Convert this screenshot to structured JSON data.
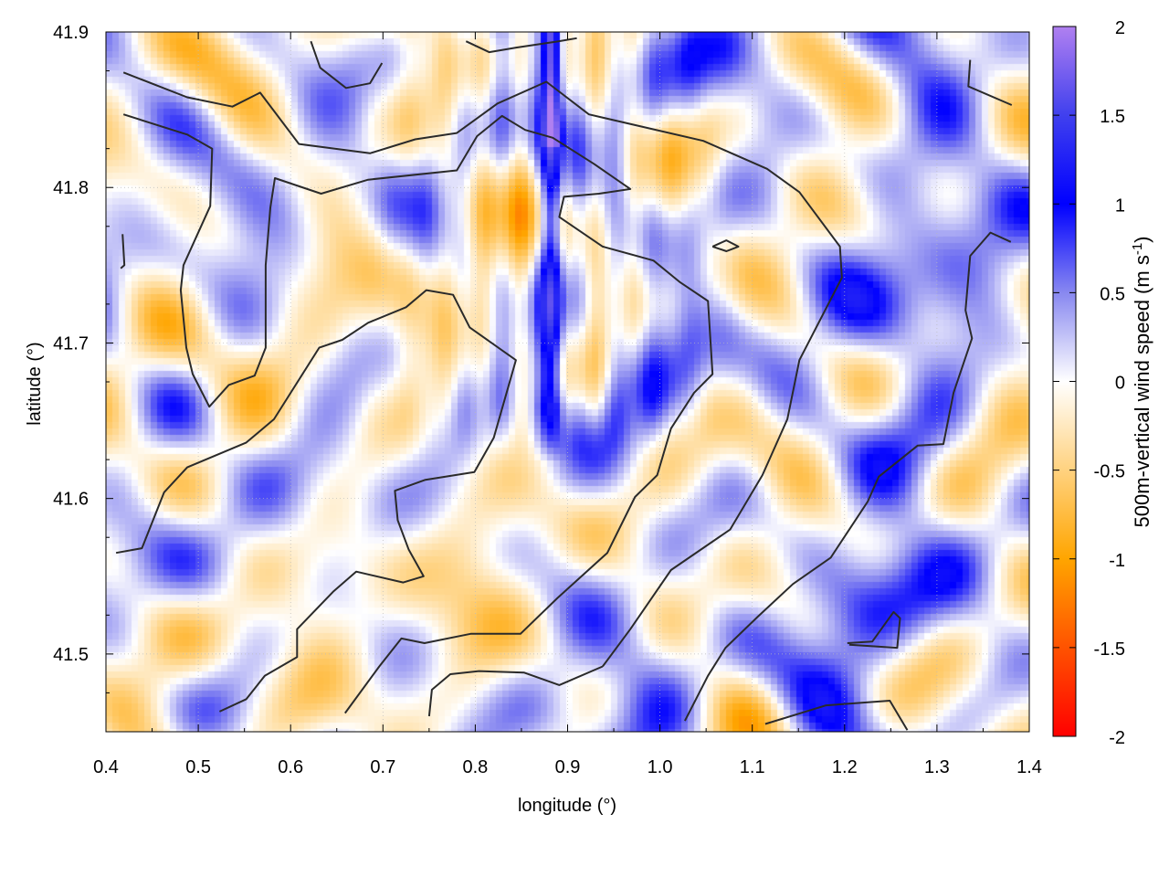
{
  "chart_data": {
    "type": "heatmap",
    "xlabel": "longitude (°)",
    "ylabel": "latitude (°)",
    "colorbar_label": "500m-vertical wind speed (m s",
    "colorbar_label_sup": "-1",
    "colorbar_label_end": ")",
    "xlim": [
      0.4,
      1.4
    ],
    "ylim": [
      41.45,
      41.9
    ],
    "clim": [
      -2,
      2
    ],
    "xticks": [
      "0.4",
      "0.5",
      "0.6",
      "0.7",
      "0.8",
      "0.9",
      "1.0",
      "1.1",
      "1.2",
      "1.3",
      "1.4"
    ],
    "yticks": [
      "41.5",
      "41.6",
      "41.7",
      "41.8",
      "41.9"
    ],
    "cticks": [
      "2",
      "1.5",
      "1",
      "0.5",
      "0",
      "-0.5",
      "-1",
      "-1.5",
      "-2"
    ],
    "grid": true,
    "colormap": [
      {
        "v": -2,
        "color": "#ff0000"
      },
      {
        "v": -1,
        "color": "#ffa500"
      },
      {
        "v": 0,
        "color": "#ffffff"
      },
      {
        "v": 0.5,
        "color": "#8888f0"
      },
      {
        "v": 1,
        "color": "#0000ff"
      },
      {
        "v": 1.5,
        "color": "#4040ee"
      },
      {
        "v": 2,
        "color": "#b080f0"
      }
    ],
    "field_features": [
      {
        "kind": "updraft-jet",
        "lon": 0.88,
        "lat_from": 41.66,
        "lat_to": 41.9,
        "peak": 1.9
      }
    ],
    "contours": [
      [
        [
          0.419,
          41.874
        ],
        [
          0.488,
          41.858
        ],
        [
          0.537,
          41.852
        ],
        [
          0.567,
          41.861
        ],
        [
          0.609,
          41.828
        ],
        [
          0.686,
          41.822
        ],
        [
          0.735,
          41.831
        ],
        [
          0.78,
          41.835
        ],
        [
          0.824,
          41.854
        ],
        [
          0.877,
          41.868
        ],
        [
          0.923,
          41.847
        ],
        [
          1.047,
          41.83
        ],
        [
          1.116,
          41.812
        ],
        [
          1.151,
          41.797
        ],
        [
          1.195,
          41.762
        ],
        [
          1.197,
          41.742
        ],
        [
          1.151,
          41.689
        ],
        [
          1.138,
          41.651
        ],
        [
          1.111,
          41.615
        ],
        [
          1.076,
          41.58
        ],
        [
          1.012,
          41.554
        ],
        [
          0.968,
          41.516
        ],
        [
          0.938,
          41.492
        ]
      ],
      [
        [
          0.419,
          41.847
        ],
        [
          0.488,
          41.834
        ],
        [
          0.515,
          41.825
        ],
        [
          0.513,
          41.788
        ],
        [
          0.484,
          41.75
        ],
        [
          0.481,
          41.734
        ],
        [
          0.487,
          41.697
        ],
        [
          0.494,
          41.68
        ],
        [
          0.512,
          41.659
        ],
        [
          0.533,
          41.673
        ],
        [
          0.561,
          41.679
        ],
        [
          0.573,
          41.697
        ],
        [
          0.573,
          41.75
        ],
        [
          0.578,
          41.787
        ],
        [
          0.583,
          41.806
        ],
        [
          0.633,
          41.796
        ],
        [
          0.684,
          41.805
        ],
        [
          0.78,
          41.811
        ],
        [
          0.802,
          41.833
        ],
        [
          0.829,
          41.846
        ],
        [
          0.854,
          41.837
        ],
        [
          0.884,
          41.832
        ],
        [
          0.929,
          41.815
        ],
        [
          0.968,
          41.799
        ],
        [
          0.934,
          41.796
        ],
        [
          0.896,
          41.794
        ],
        [
          0.891,
          41.781
        ],
        [
          0.938,
          41.762
        ],
        [
          0.993,
          41.753
        ],
        [
          1.022,
          41.739
        ],
        [
          1.052,
          41.727
        ],
        [
          1.057,
          41.68
        ],
        [
          1.037,
          41.668
        ],
        [
          1.012,
          41.645
        ],
        [
          0.997,
          41.615
        ],
        [
          0.973,
          41.601
        ],
        [
          0.943,
          41.565
        ],
        [
          0.889,
          41.536
        ],
        [
          0.849,
          41.513
        ],
        [
          0.795,
          41.513
        ],
        [
          0.745,
          41.507
        ],
        [
          0.72,
          41.51
        ],
        [
          0.696,
          41.492
        ],
        [
          0.659,
          41.462
        ]
      ],
      [
        [
          0.411,
          41.565
        ],
        [
          0.439,
          41.568
        ],
        [
          0.463,
          41.604
        ],
        [
          0.488,
          41.62
        ],
        [
          0.552,
          41.636
        ],
        [
          0.582,
          41.651
        ],
        [
          0.631,
          41.697
        ],
        [
          0.656,
          41.702
        ],
        [
          0.684,
          41.713
        ],
        [
          0.725,
          41.723
        ],
        [
          0.747,
          41.734
        ],
        [
          0.776,
          41.731
        ],
        [
          0.794,
          41.71
        ],
        [
          0.844,
          41.689
        ],
        [
          0.82,
          41.639
        ],
        [
          0.799,
          41.617
        ],
        [
          0.746,
          41.612
        ],
        [
          0.713,
          41.605
        ],
        [
          0.716,
          41.586
        ],
        [
          0.728,
          41.567
        ],
        [
          0.744,
          41.55
        ],
        [
          0.722,
          41.546
        ],
        [
          0.671,
          41.553
        ],
        [
          0.646,
          41.54
        ],
        [
          0.607,
          41.516
        ],
        [
          0.607,
          41.498
        ],
        [
          0.572,
          41.486
        ],
        [
          0.552,
          41.471
        ],
        [
          0.523,
          41.463
        ]
      ],
      [
        [
          1.38,
          41.765
        ],
        [
          1.358,
          41.771
        ],
        [
          1.336,
          41.756
        ],
        [
          1.331,
          41.721
        ],
        [
          1.338,
          41.703
        ],
        [
          1.318,
          41.668
        ],
        [
          1.307,
          41.635
        ],
        [
          1.279,
          41.634
        ],
        [
          1.237,
          41.614
        ],
        [
          1.225,
          41.598
        ],
        [
          1.185,
          41.562
        ],
        [
          1.144,
          41.545
        ],
        [
          1.106,
          41.524
        ],
        [
          1.071,
          41.504
        ],
        [
          1.052,
          41.486
        ],
        [
          1.027,
          41.457
        ]
      ],
      [
        [
          0.75,
          41.46
        ],
        [
          0.753,
          41.477
        ],
        [
          0.773,
          41.487
        ],
        [
          0.804,
          41.489
        ],
        [
          0.853,
          41.488
        ],
        [
          0.891,
          41.48
        ],
        [
          0.938,
          41.492
        ]
      ],
      [
        [
          1.114,
          41.455
        ],
        [
          1.18,
          41.467
        ],
        [
          1.249,
          41.47
        ],
        [
          1.268,
          41.451
        ]
      ],
      [
        [
          1.203,
          41.507
        ],
        [
          1.23,
          41.508
        ],
        [
          1.253,
          41.527
        ],
        [
          1.26,
          41.523
        ],
        [
          1.257,
          41.504
        ],
        [
          1.205,
          41.506
        ]
      ],
      [
        [
          0.622,
          41.894
        ],
        [
          0.632,
          41.877
        ],
        [
          0.66,
          41.864
        ],
        [
          0.686,
          41.867
        ],
        [
          0.699,
          41.88
        ]
      ],
      [
        [
          0.79,
          41.894
        ],
        [
          0.815,
          41.887
        ],
        [
          0.845,
          41.89
        ],
        [
          0.89,
          41.894
        ],
        [
          0.91,
          41.896
        ]
      ],
      [
        [
          1.336,
          41.882
        ],
        [
          1.334,
          41.865
        ],
        [
          1.381,
          41.853
        ]
      ],
      [
        [
          1.057,
          41.762
        ],
        [
          1.072,
          41.766
        ],
        [
          1.085,
          41.762
        ],
        [
          1.072,
          41.759
        ],
        [
          1.057,
          41.762
        ]
      ],
      [
        [
          0.418,
          41.77
        ],
        [
          0.42,
          41.75
        ],
        [
          0.416,
          41.748
        ]
      ]
    ]
  }
}
